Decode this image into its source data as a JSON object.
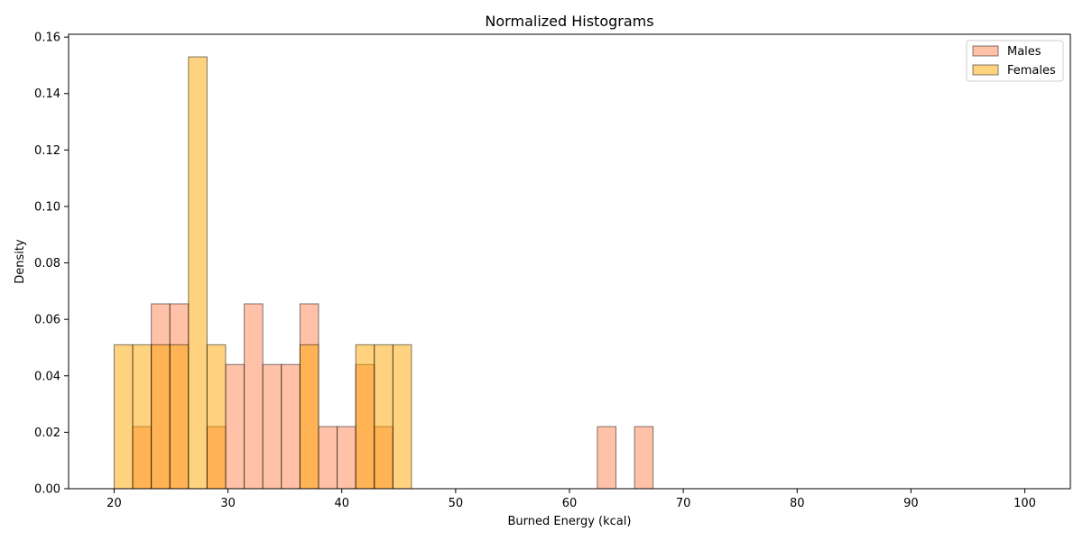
{
  "chart_data": {
    "type": "bar",
    "title": "Normalized Histograms",
    "xlabel": "Burned Energy (kcal)",
    "ylabel": "Density",
    "xlim": [
      16,
      104
    ],
    "ylim": [
      0,
      0.161
    ],
    "xticks": [
      20,
      30,
      40,
      50,
      60,
      70,
      80,
      90,
      100
    ],
    "yticks": [
      0.0,
      0.02,
      0.04,
      0.06,
      0.08,
      0.1,
      0.12,
      0.14,
      0.16
    ],
    "xtick_labels": [
      "20",
      "30",
      "40",
      "50",
      "60",
      "70",
      "80",
      "90",
      "100"
    ],
    "ytick_labels": [
      "0.00",
      "0.02",
      "0.04",
      "0.06",
      "0.08",
      "0.10",
      "0.12",
      "0.14",
      "0.16"
    ],
    "bins": {
      "start": 20,
      "end": 100,
      "count": 49
    },
    "grid": false,
    "legend_position": "top-right",
    "series": [
      {
        "name": "Males",
        "color": "#ffa07a",
        "opacity": 0.65,
        "values": [
          0,
          0.022,
          0.0655,
          0.0655,
          0,
          0.022,
          0.044,
          0.0655,
          0.044,
          0.044,
          0.0655,
          0.022,
          0.022,
          0.044,
          0.022,
          0,
          0,
          0,
          0,
          0,
          0,
          0,
          0,
          0,
          0,
          0,
          0.022,
          0,
          0.022,
          0,
          0,
          0,
          0,
          0,
          0,
          0,
          0,
          0,
          0,
          0,
          0,
          0,
          0,
          0,
          0,
          0,
          0,
          0,
          0
        ]
      },
      {
        "name": "Females",
        "color": "#ffa500",
        "opacity": 0.5,
        "values": [
          0.051,
          0.051,
          0.051,
          0.051,
          0.153,
          0.051,
          0,
          0,
          0,
          0,
          0.051,
          0,
          0,
          0.051,
          0.051,
          0.051,
          0,
          0,
          0,
          0,
          0,
          0,
          0,
          0,
          0,
          0,
          0,
          0,
          0,
          0,
          0,
          0,
          0,
          0,
          0,
          0,
          0,
          0,
          0,
          0,
          0,
          0,
          0,
          0,
          0,
          0,
          0,
          0,
          0
        ]
      }
    ]
  }
}
